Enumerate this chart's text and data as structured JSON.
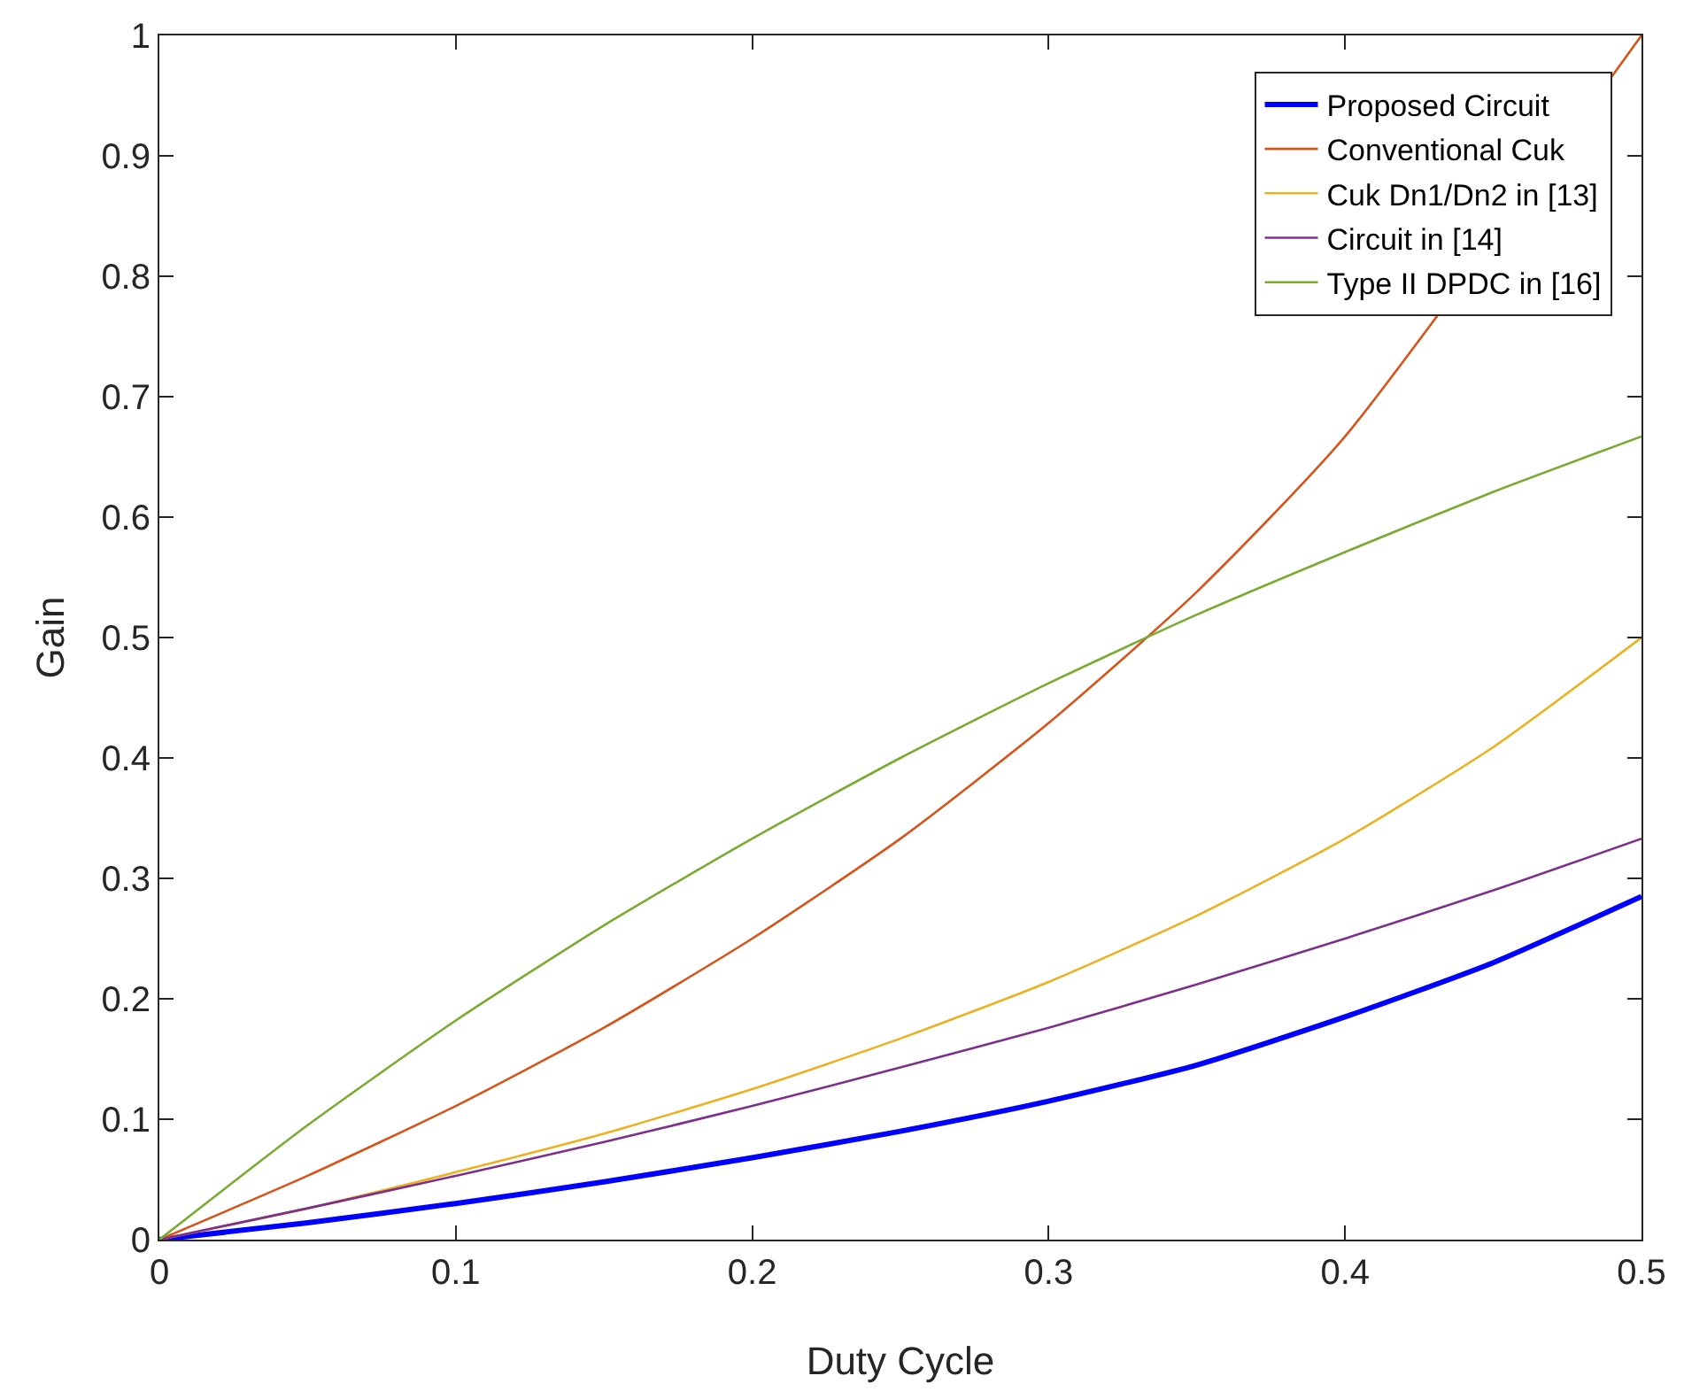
{
  "chart_data": {
    "type": "line",
    "xlabel": "Duty Cycle",
    "ylabel": "Gain",
    "x": [
      0,
      0.05,
      0.1,
      0.15,
      0.2,
      0.25,
      0.3,
      0.35,
      0.4,
      0.45,
      0.5
    ],
    "series": [
      {
        "name": "Proposed Circuit",
        "color": "#0000ff",
        "values": [
          0,
          0.014,
          0.03,
          0.048,
          0.068,
          0.09,
          0.115,
          0.145,
          0.185,
          0.23,
          0.285
        ]
      },
      {
        "name": "Conventional Cuk",
        "color": "#d95319",
        "values": [
          0,
          0.053,
          0.111,
          0.176,
          0.25,
          0.333,
          0.429,
          0.538,
          0.667,
          null,
          1
        ]
      },
      {
        "name": "Cuk Dn1/Dn2 in [13]",
        "color": "#edb120",
        "values": [
          0,
          0.026,
          0.056,
          0.088,
          0.125,
          0.167,
          0.214,
          0.269,
          0.333,
          0.409,
          0.5
        ]
      },
      {
        "name": "Circuit in [14]",
        "color": "#7e2f8e",
        "values": [
          0,
          0.026,
          0.053,
          0.081,
          0.111,
          0.143,
          0.176,
          0.212,
          0.25,
          0.29,
          0.333
        ]
      },
      {
        "name": "Type II DPDC in [16]",
        "color": "#77ac30",
        "values": [
          0,
          0.095,
          0.182,
          0.261,
          0.333,
          0.4,
          0.462,
          0.519,
          0.571,
          0.621,
          0.667
        ]
      }
    ],
    "xlim": [
      0,
      0.5
    ],
    "xticks": [
      0,
      0.1,
      0.2,
      0.3,
      0.4,
      0.5
    ],
    "ylim": [
      0,
      1
    ],
    "yticks": [
      0,
      0.1,
      0.2,
      0.3,
      0.4,
      0.5,
      0.6,
      0.7,
      0.8,
      0.9,
      1
    ],
    "grid": false,
    "legend": "top right",
    "marker": "none",
    "line_style": "solid"
  }
}
